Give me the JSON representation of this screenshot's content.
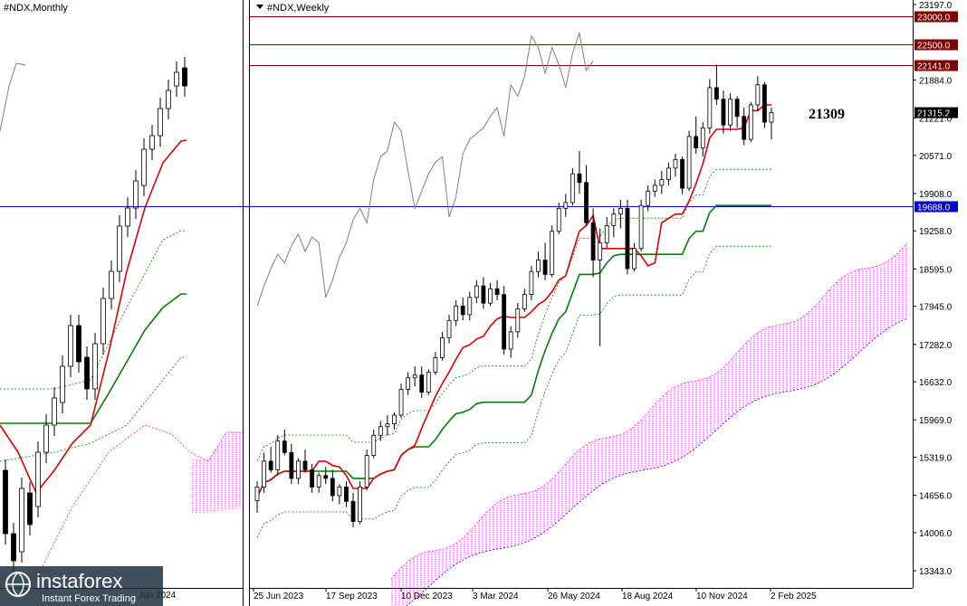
{
  "left_panel": {
    "title": "#NDX,Monthly",
    "x_tick": "Jun 2024"
  },
  "right_panel": {
    "title": "#NDX,Weekly",
    "annotation": "21309"
  },
  "colors": {
    "tenkan": "#e00000",
    "kijun": "#008000",
    "chikou": "#808080",
    "span": "#008000",
    "cloud": "#ff00ff",
    "level_line": "#800000",
    "support_line": "#0000c8",
    "current_tag": "#000000",
    "level_tag": "#800000",
    "support_tag": "#0000c8"
  },
  "logo": {
    "brand": "instaforex",
    "tagline": "Instant Forex Trading"
  },
  "chart_data": [
    {
      "type": "candlestick",
      "symbol": "#NDX",
      "timeframe": "Monthly",
      "x_tick_labels": [
        "Jun 2024"
      ],
      "indicators": [
        "tenkan",
        "kijun",
        "chikou",
        "kumo"
      ]
    },
    {
      "type": "candlestick",
      "symbol": "#NDX",
      "timeframe": "Weekly",
      "ylim": [
        13100,
        23300
      ],
      "y_tick_labels": [
        "23197.0",
        "21884.0",
        "21221.0",
        "20571.0",
        "19908.0",
        "19258.0",
        "18595.0",
        "17945.0",
        "17282.0",
        "16632.0",
        "15969.0",
        "15319.0",
        "14656.0",
        "14006.0",
        "13343.0"
      ],
      "x_tick_labels": [
        "25 Jun 2023",
        "17 Sep 2023",
        "10 Dec 2023",
        "3 Mar 2024",
        "26 May 2024",
        "18 Aug 2024",
        "10 Nov 2024",
        "2 Feb 2025"
      ],
      "levels": [
        {
          "value": 23000.0,
          "label": "23000.0",
          "kind": "resistance"
        },
        {
          "value": 22500.0,
          "label": "22500.0",
          "kind": "resistance"
        },
        {
          "value": 22141.0,
          "label": "22141.0",
          "kind": "resistance"
        },
        {
          "value": 19688.0,
          "label": "19688.0",
          "kind": "support"
        }
      ],
      "current_price": {
        "value": 21315.2,
        "label": "21315.2"
      },
      "annotation_value": "21309",
      "candles": [
        [
          14560,
          14900,
          14350,
          14800
        ],
        [
          14800,
          15400,
          14700,
          15250
        ],
        [
          15250,
          15500,
          15050,
          15100
        ],
        [
          15100,
          15700,
          15000,
          15600
        ],
        [
          15600,
          15800,
          15350,
          15400
        ],
        [
          15400,
          15550,
          14850,
          14950
        ],
        [
          14950,
          15300,
          14850,
          15250
        ],
        [
          15250,
          15450,
          15050,
          15100
        ],
        [
          15100,
          15200,
          14700,
          14800
        ],
        [
          14800,
          15050,
          14700,
          15000
        ],
        [
          15000,
          15150,
          14850,
          14950
        ],
        [
          14950,
          15100,
          14550,
          14650
        ],
        [
          14650,
          14850,
          14500,
          14800
        ],
        [
          14800,
          14900,
          14450,
          14550
        ],
        [
          14550,
          14700,
          14100,
          14200
        ],
        [
          14200,
          14900,
          14150,
          14800
        ],
        [
          14800,
          15450,
          14750,
          15350
        ],
        [
          15350,
          15800,
          15300,
          15700
        ],
        [
          15700,
          15950,
          15600,
          15850
        ],
        [
          15850,
          16050,
          15700,
          15900
        ],
        [
          15900,
          16100,
          15800,
          16050
        ],
        [
          16050,
          16600,
          16000,
          16500
        ],
        [
          16500,
          16800,
          16400,
          16700
        ],
        [
          16700,
          16900,
          16550,
          16750
        ],
        [
          16750,
          16900,
          16350,
          16450
        ],
        [
          16450,
          16850,
          16400,
          16800
        ],
        [
          16800,
          17150,
          16750,
          17050
        ],
        [
          17050,
          17500,
          17000,
          17400
        ],
        [
          17400,
          17800,
          17300,
          17700
        ],
        [
          17700,
          18050,
          17600,
          17950
        ],
        [
          17950,
          18100,
          17700,
          17800
        ],
        [
          17800,
          18200,
          17700,
          18100
        ],
        [
          18100,
          18400,
          18000,
          18300
        ],
        [
          18300,
          18450,
          17900,
          18000
        ],
        [
          18000,
          18350,
          17950,
          18250
        ],
        [
          18250,
          18400,
          18050,
          18150
        ],
        [
          18150,
          18300,
          17100,
          17200
        ],
        [
          17200,
          17600,
          17050,
          17500
        ],
        [
          17500,
          18000,
          17400,
          17900
        ],
        [
          17900,
          18250,
          17850,
          18150
        ],
        [
          18150,
          18650,
          18050,
          18550
        ],
        [
          18550,
          18900,
          18450,
          18750
        ],
        [
          18750,
          19050,
          18400,
          18500
        ],
        [
          18500,
          19350,
          18450,
          19250
        ],
        [
          19250,
          19750,
          19200,
          19650
        ],
        [
          19650,
          19900,
          19500,
          19750
        ],
        [
          19750,
          20350,
          19700,
          20250
        ],
        [
          20250,
          20650,
          19900,
          20100
        ],
        [
          20100,
          20400,
          19350,
          19400
        ],
        [
          19400,
          19650,
          18450,
          18750
        ],
        [
          18750,
          19300,
          17250,
          19050
        ],
        [
          19050,
          19500,
          18950,
          19350
        ],
        [
          19350,
          19650,
          19150,
          19550
        ],
        [
          19550,
          19800,
          19300,
          19650
        ],
        [
          19650,
          19800,
          18500,
          18600
        ],
        [
          18600,
          19050,
          18550,
          18950
        ],
        [
          18950,
          19800,
          18900,
          19700
        ],
        [
          19700,
          20050,
          19600,
          19950
        ],
        [
          19950,
          20150,
          19850,
          20050
        ],
        [
          20050,
          20300,
          19900,
          20150
        ],
        [
          20150,
          20450,
          20050,
          20350
        ],
        [
          20350,
          20600,
          20200,
          20500
        ],
        [
          20500,
          20550,
          19900,
          20000
        ],
        [
          20000,
          21000,
          19950,
          20900
        ],
        [
          20900,
          21250,
          20600,
          20700
        ],
        [
          20700,
          21150,
          20550,
          21050
        ],
        [
          21050,
          21900,
          20950,
          21750
        ],
        [
          21750,
          22150,
          21450,
          21550
        ],
        [
          21550,
          21700,
          20950,
          21100
        ],
        [
          21100,
          21650,
          21000,
          21550
        ],
        [
          21550,
          21600,
          21050,
          21250
        ],
        [
          21250,
          21400,
          20750,
          20850
        ],
        [
          20850,
          21500,
          20800,
          21450
        ],
        [
          21450,
          21950,
          21350,
          21800
        ],
        [
          21800,
          21850,
          21050,
          21150
        ],
        [
          21150,
          21400,
          20850,
          21315
        ]
      ]
    }
  ]
}
